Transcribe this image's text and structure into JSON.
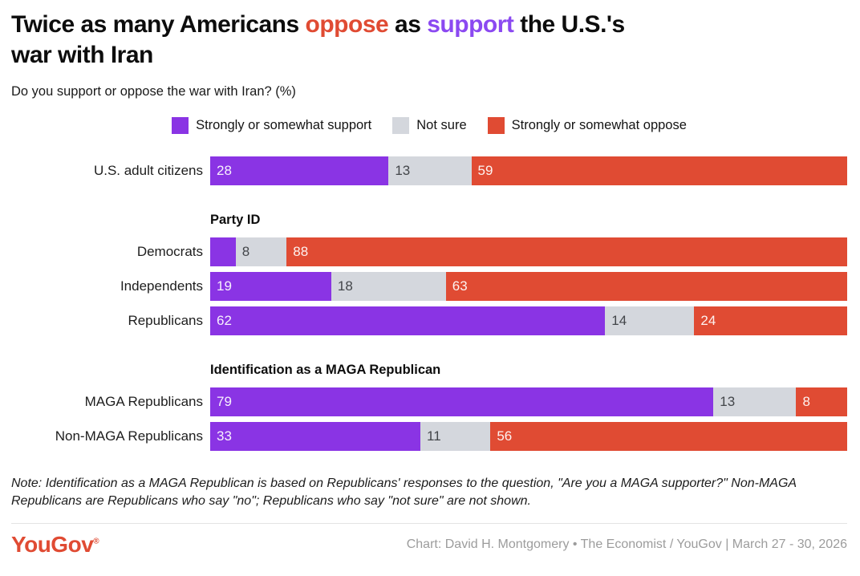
{
  "title": {
    "prefix": "Twice as many Americans ",
    "oppose_word": "oppose",
    "mid": " as ",
    "support_word": "support",
    "suffix_line1": " the U.S.'s",
    "line2": "war with Iran"
  },
  "subtitle": "Do you support or oppose the war with Iran? (%)",
  "colors": {
    "support": "#8a34e4",
    "not_sure": "#d4d7dd",
    "oppose": "#e04b33",
    "title_oppose": "#e04b33",
    "title_support": "#8b49f1",
    "logo": "#e04b33",
    "credit_text": "#9c9c9c"
  },
  "chart_data": {
    "type": "bar",
    "orientation": "horizontal",
    "stacked": true,
    "unit": "%",
    "x_range": [
      0,
      100
    ],
    "legend_position": "top-center",
    "colors": [
      "#8a34e4",
      "#d4d7dd",
      "#e04b33"
    ],
    "series": [
      {
        "key": "support",
        "name": "Strongly or somewhat support"
      },
      {
        "key": "not-sure",
        "name": "Not sure"
      },
      {
        "key": "oppose",
        "name": "Strongly or somewhat oppose"
      }
    ],
    "groups": [
      {
        "header": "",
        "rows": [
          {
            "label": "U.S. adult citizens",
            "values": [
              28,
              13,
              59
            ],
            "labels": [
              "28",
              "13",
              "59"
            ]
          }
        ]
      },
      {
        "header": "Party ID",
        "rows": [
          {
            "label": "Democrats",
            "values": [
              4,
              8,
              88
            ],
            "labels": [
              "",
              "8",
              "88"
            ]
          },
          {
            "label": "Independents",
            "values": [
              19,
              18,
              63
            ],
            "labels": [
              "19",
              "18",
              "63"
            ]
          },
          {
            "label": "Republicans",
            "values": [
              62,
              14,
              24
            ],
            "labels": [
              "62",
              "14",
              "24"
            ]
          }
        ]
      },
      {
        "header": "Identification as a MAGA Republican",
        "rows": [
          {
            "label": "MAGA Republicans",
            "values": [
              79,
              13,
              8
            ],
            "labels": [
              "79",
              "13",
              "8"
            ]
          },
          {
            "label": "Non-MAGA Republicans",
            "values": [
              33,
              11,
              56
            ],
            "labels": [
              "33",
              "11",
              "56"
            ]
          }
        ]
      }
    ]
  },
  "note": "Note: Identification as a MAGA Republican is based on Republicans' responses to the question, \"Are you a MAGA supporter?\" Non-MAGA Republicans are Republicans who say \"no\"; Republicans who say \"not sure\" are not shown.",
  "footer": {
    "logo": "YouGov",
    "logo_mark": "®",
    "credit": "Chart: David H. Montgomery • The Economist / YouGov | March 27 - 30, 2026"
  }
}
